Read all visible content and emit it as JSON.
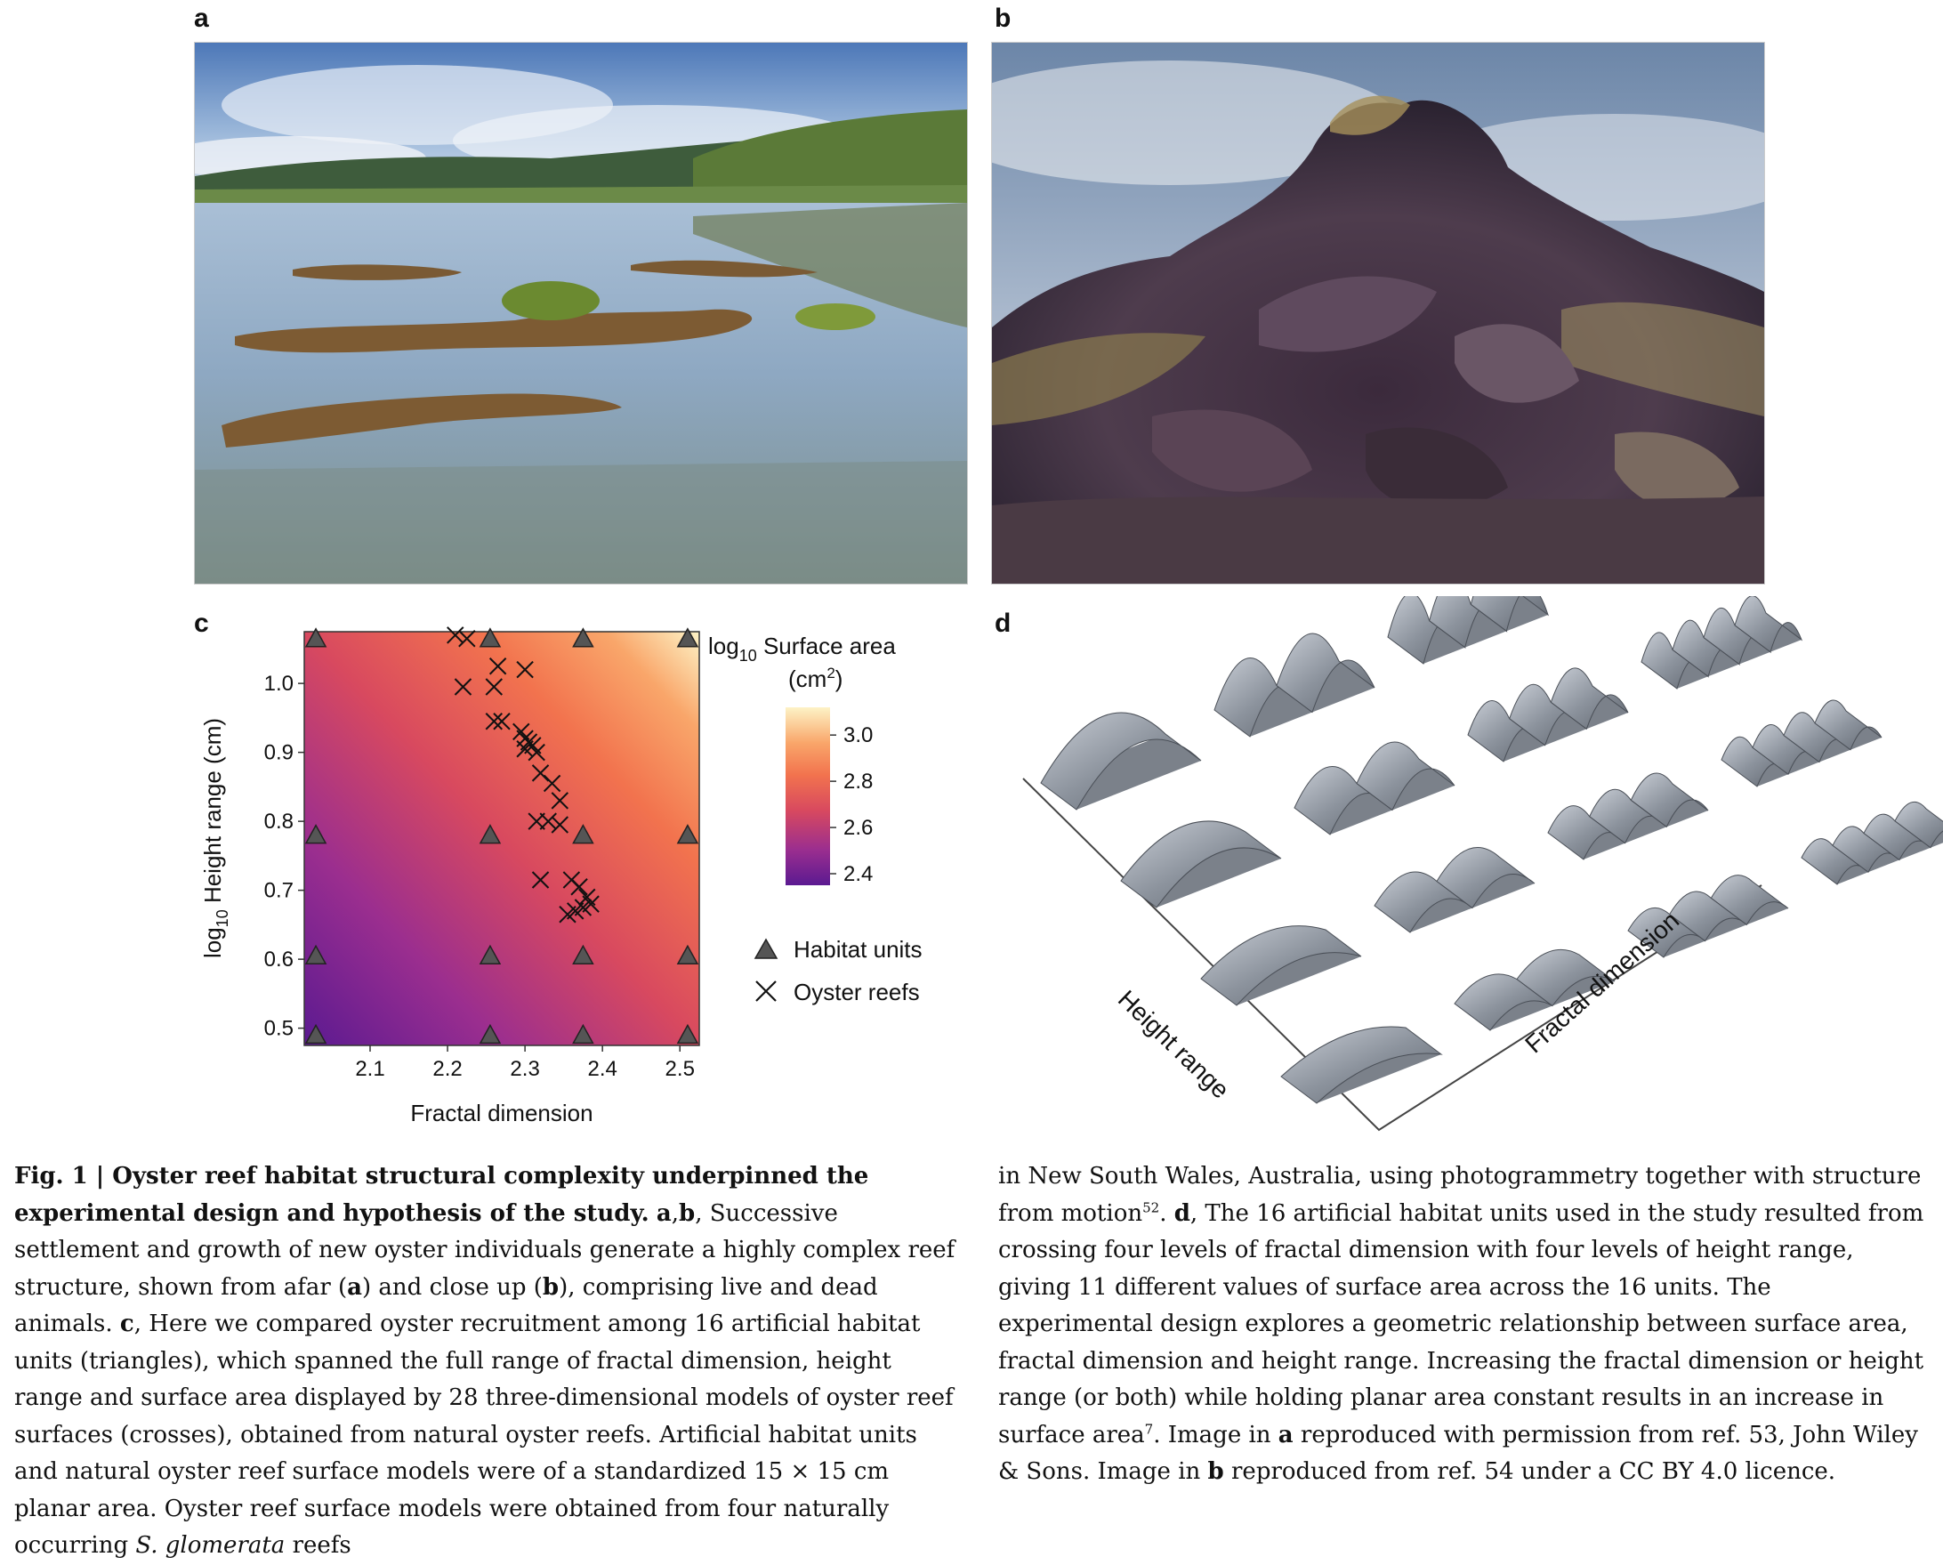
{
  "panels": {
    "a": "a",
    "b": "b",
    "c": "c",
    "d": "d"
  },
  "chart_data": {
    "type": "scatter",
    "xlabel": "Fractal dimension",
    "ylabel_main": "log",
    "ylabel_sub": "10",
    "ylabel_rest": " Height range (cm)",
    "xlim": [
      2.015,
      2.525
    ],
    "ylim": [
      0.475,
      1.075
    ],
    "xticks": [
      "2.1",
      "2.2",
      "2.3",
      "2.4",
      "2.5"
    ],
    "xtick_values": [
      2.1,
      2.2,
      2.3,
      2.4,
      2.5
    ],
    "yticks": [
      "0.5",
      "0.6",
      "0.7",
      "0.8",
      "0.9",
      "1.0"
    ],
    "ytick_values": [
      0.5,
      0.6,
      0.7,
      0.8,
      0.9,
      1.0
    ],
    "colorbar": {
      "title_line1_main": "log",
      "title_line1_sub": "10",
      "title_line1_rest": " Surface area",
      "title_line2": "(cm",
      "title_line2_sup": "2",
      "title_line2_end": ")",
      "ticks": [
        "3.0",
        "2.8",
        "2.6",
        "2.4"
      ],
      "tick_values": [
        3.0,
        2.8,
        2.6,
        2.4
      ],
      "range": [
        2.35,
        3.12
      ],
      "colors": [
        "#5b1a91",
        "#9b2e8f",
        "#d8495f",
        "#f2734e",
        "#f9a66a",
        "#fdd89d",
        "#fdf3c6"
      ]
    },
    "legend": [
      {
        "marker": "triangle",
        "label": "Habitat units"
      },
      {
        "marker": "cross",
        "label": "Oyster reefs"
      }
    ],
    "series": [
      {
        "name": "Habitat units",
        "marker": "triangle",
        "points": [
          [
            2.03,
            1.065
          ],
          [
            2.255,
            1.065
          ],
          [
            2.375,
            1.065
          ],
          [
            2.51,
            1.065
          ],
          [
            2.03,
            0.78
          ],
          [
            2.255,
            0.78
          ],
          [
            2.375,
            0.78
          ],
          [
            2.51,
            0.78
          ],
          [
            2.03,
            0.605
          ],
          [
            2.255,
            0.605
          ],
          [
            2.375,
            0.605
          ],
          [
            2.51,
            0.605
          ],
          [
            2.03,
            0.49
          ],
          [
            2.255,
            0.49
          ],
          [
            2.375,
            0.49
          ],
          [
            2.51,
            0.49
          ]
        ]
      },
      {
        "name": "Oyster reefs",
        "marker": "cross",
        "points": [
          [
            2.21,
            1.07
          ],
          [
            2.225,
            1.065
          ],
          [
            2.265,
            1.025
          ],
          [
            2.3,
            1.02
          ],
          [
            2.22,
            0.995
          ],
          [
            2.26,
            0.995
          ],
          [
            2.26,
            0.945
          ],
          [
            2.27,
            0.945
          ],
          [
            2.295,
            0.93
          ],
          [
            2.3,
            0.92
          ],
          [
            2.305,
            0.915
          ],
          [
            2.31,
            0.91
          ],
          [
            2.3,
            0.905
          ],
          [
            2.315,
            0.9
          ],
          [
            2.32,
            0.87
          ],
          [
            2.335,
            0.855
          ],
          [
            2.345,
            0.83
          ],
          [
            2.315,
            0.8
          ],
          [
            2.33,
            0.8
          ],
          [
            2.345,
            0.795
          ],
          [
            2.32,
            0.715
          ],
          [
            2.36,
            0.715
          ],
          [
            2.37,
            0.705
          ],
          [
            2.38,
            0.69
          ],
          [
            2.385,
            0.68
          ],
          [
            2.375,
            0.675
          ],
          [
            2.355,
            0.665
          ],
          [
            2.365,
            0.67
          ]
        ]
      }
    ],
    "surface_gradient": {
      "low_corner": "bottom-left",
      "high_corner": "top-right"
    }
  },
  "fig_d": {
    "axis_left": "Height range",
    "axis_right": "Fractal dimension"
  },
  "caption": {
    "left_title": "Fig. 1 | Oyster reef habitat structural complexity underpinned the experimental design and hypothesis of the study.",
    "left_t1": " ",
    "left_ab": "a",
    "left_t2": ",",
    "left_b": "b",
    "left_t3": ", Successive settlement and growth of new oyster individuals generate a highly complex reef structure, shown from afar (",
    "left_a2": "a",
    "left_t4": ") and close up (",
    "left_b2": "b",
    "left_t5": "), comprising live and dead animals. ",
    "left_c": "c",
    "left_t6": ", Here we compared oyster recruitment among 16 artificial habitat units (triangles), which spanned the full range of fractal dimension, height range and surface area displayed by 28 three-dimensional models of oyster reef surfaces (crosses), obtained from natural oyster reefs. Artificial habitat units and natural oyster reef surface models were of a standardized 15 × 15 cm planar area. Oyster reef surface models were obtained from four naturally occurring ",
    "left_species": "S. glomerata",
    "left_t7": " reefs",
    "right_t1": "in New South Wales, Australia, using photogrammetry together with structure from motion",
    "right_ref52": "52",
    "right_t2": ". ",
    "right_d": "d",
    "right_t3": ", The 16 artificial habitat units used in the study resulted from crossing four levels of fractal dimension with four levels of height range, giving 11 different values of surface area across the 16 units. The experimental design explores a geometric relationship between surface area, fractal dimension and height range. Increasing the fractal dimension or height range (or both) while holding planar area constant results in an increase in surface area",
    "right_ref7": "7",
    "right_t4": ". Image in ",
    "right_a": "a",
    "right_t5": " reproduced with permission from ref. 53, John Wiley & Sons. Image in ",
    "right_b": "b",
    "right_t6": " reproduced from ref. 54 under a CC BY 4.0 licence."
  }
}
